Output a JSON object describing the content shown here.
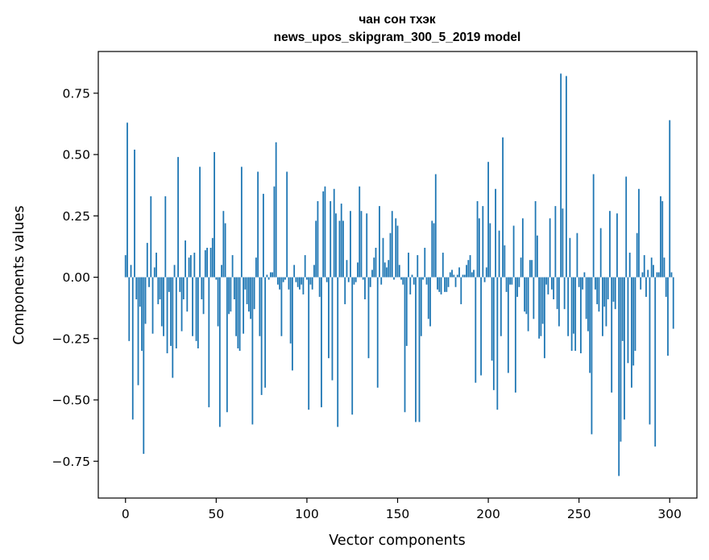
{
  "chart_data": {
    "type": "bar",
    "title": "чан сон тхэк",
    "subtitle": "news_upos_skipgram_300_5_2019 model",
    "xlabel": "Vector components",
    "ylabel": "Components values",
    "xlim": [
      -15,
      315
    ],
    "ylim": [
      -0.9,
      0.92
    ],
    "xticks": [
      0,
      50,
      100,
      150,
      200,
      250,
      300
    ],
    "xtick_labels": [
      "0",
      "50",
      "100",
      "150",
      "200",
      "250",
      "300"
    ],
    "yticks": [
      -0.75,
      -0.5,
      -0.25,
      0.0,
      0.25,
      0.5,
      0.75
    ],
    "ytick_labels": [
      "−0.75",
      "−0.50",
      "−0.25",
      "0.00",
      "0.25",
      "0.50",
      "0.75"
    ],
    "bar_color": "#1f77b4",
    "grid": false,
    "series": [
      {
        "values": [
          0.09,
          0.63,
          -0.26,
          0.05,
          -0.58,
          0.52,
          -0.09,
          -0.44,
          -0.12,
          -0.3,
          -0.72,
          -0.19,
          0.14,
          -0.04,
          0.33,
          -0.23,
          0.04,
          0.1,
          -0.11,
          -0.09,
          -0.2,
          -0.24,
          0.33,
          -0.31,
          -0.06,
          -0.28,
          -0.41,
          0.05,
          -0.29,
          0.49,
          -0.06,
          -0.22,
          -0.09,
          0.15,
          -0.14,
          0.08,
          0.09,
          -0.24,
          0.1,
          -0.26,
          -0.29,
          0.45,
          -0.09,
          -0.15,
          0.11,
          0.12,
          -0.53,
          0.12,
          0.16,
          0.51,
          -0.01,
          -0.2,
          -0.61,
          0.05,
          0.27,
          0.22,
          -0.55,
          -0.15,
          -0.14,
          0.09,
          -0.09,
          -0.24,
          -0.29,
          -0.3,
          0.45,
          -0.23,
          -0.05,
          -0.11,
          -0.14,
          -0.17,
          -0.6,
          -0.13,
          0.08,
          0.43,
          -0.24,
          -0.48,
          0.34,
          -0.45,
          0.01,
          -0.01,
          0.02,
          0.02,
          0.37,
          0.55,
          -0.03,
          -0.05,
          -0.24,
          -0.02,
          -0.01,
          0.43,
          -0.05,
          -0.27,
          -0.38,
          0.05,
          -0.02,
          -0.04,
          -0.05,
          -0.03,
          -0.07,
          0.09,
          -0.01,
          -0.54,
          -0.03,
          -0.05,
          0.05,
          0.23,
          0.31,
          -0.08,
          -0.53,
          0.35,
          0.37,
          -0.02,
          -0.33,
          0.31,
          -0.42,
          0.36,
          0.26,
          -0.61,
          0.23,
          0.3,
          0.23,
          -0.11,
          0.07,
          -0.02,
          0.27,
          -0.56,
          -0.03,
          -0.02,
          0.06,
          0.37,
          0.27,
          -0.01,
          -0.09,
          0.26,
          -0.33,
          -0.04,
          0.03,
          0.08,
          0.12,
          -0.45,
          0.29,
          -0.03,
          0.16,
          0.06,
          0.04,
          0.07,
          0.18,
          0.27,
          -0.01,
          0.24,
          0.21,
          0.05,
          -0.01,
          -0.03,
          -0.55,
          -0.28,
          0.1,
          -0.07,
          0.01,
          -0.03,
          -0.59,
          0.09,
          -0.59,
          -0.24,
          -0.01,
          0.12,
          -0.03,
          -0.17,
          -0.2,
          0.23,
          0.22,
          0.42,
          -0.05,
          -0.06,
          -0.07,
          0.1,
          -0.06,
          -0.06,
          -0.04,
          0.02,
          0.03,
          0.01,
          -0.04,
          0.01,
          0.04,
          -0.11,
          0.01,
          0.01,
          0.05,
          0.07,
          0.09,
          0.02,
          0.03,
          -0.43,
          0.31,
          0.24,
          -0.4,
          0.29,
          -0.02,
          0.04,
          0.47,
          0.22,
          -0.34,
          -0.46,
          0.36,
          -0.54,
          0.19,
          -0.24,
          0.57,
          0.13,
          -0.06,
          -0.39,
          -0.03,
          -0.03,
          0.21,
          -0.47,
          -0.08,
          -0.04,
          0.08,
          0.24,
          -0.14,
          -0.15,
          -0.22,
          0.07,
          0.07,
          -0.17,
          0.31,
          0.17,
          -0.25,
          -0.24,
          -0.19,
          -0.33,
          -0.03,
          -0.07,
          0.24,
          -0.05,
          -0.09,
          0.29,
          -0.13,
          -0.2,
          0.83,
          0.28,
          -0.13,
          0.82,
          -0.24,
          0.16,
          -0.3,
          -0.23,
          -0.3,
          0.18,
          -0.04,
          -0.31,
          -0.05,
          0.02,
          -0.17,
          -0.22,
          -0.39,
          -0.64,
          0.42,
          -0.05,
          -0.11,
          -0.14,
          0.2,
          -0.24,
          -0.12,
          -0.2,
          -0.09,
          0.27,
          -0.47,
          -0.1,
          -0.13,
          0.26,
          -0.81,
          -0.67,
          -0.26,
          -0.58,
          0.41,
          -0.35,
          0.1,
          -0.45,
          -0.36,
          -0.3,
          0.18,
          0.36,
          -0.05,
          0.02,
          0.09,
          -0.08,
          0.03,
          -0.6,
          0.08,
          0.05,
          -0.69,
          0.02,
          0.02,
          0.33,
          0.31,
          0.08,
          -0.08,
          -0.32,
          0.64,
          0.02,
          -0.21
        ]
      }
    ]
  }
}
